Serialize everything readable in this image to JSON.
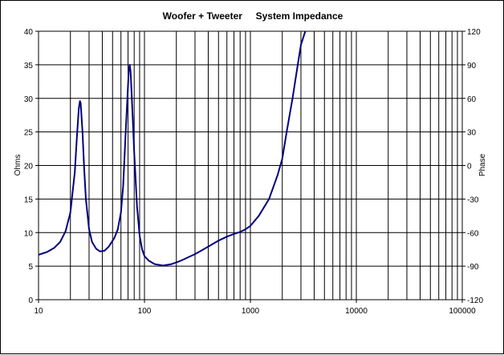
{
  "chart_data": {
    "type": "line",
    "title": "Woofer + Tweeter     System Impedance",
    "ylabel": "Ohms",
    "y2label": "Phase",
    "x_scale": "log",
    "xlim": [
      10,
      100000
    ],
    "ylim": [
      0,
      40
    ],
    "y2lim": [
      -120,
      120
    ],
    "grid": true,
    "x_tick_labels": [
      "10",
      "100",
      "1000",
      "10000",
      "100000"
    ],
    "y_tick_labels": [
      "0",
      "5",
      "10",
      "15",
      "20",
      "25",
      "30",
      "35",
      "40"
    ],
    "y2_tick_labels": [
      "-120",
      "-90",
      "-60",
      "-30",
      "0",
      "30",
      "60",
      "90",
      "120"
    ],
    "line_color": "#000080",
    "series": [
      {
        "points": [
          [
            10,
            6.7
          ],
          [
            12,
            7.1
          ],
          [
            14,
            7.7
          ],
          [
            16,
            8.6
          ],
          [
            18,
            10.2
          ],
          [
            20,
            13.0
          ],
          [
            22,
            19.0
          ],
          [
            23,
            24.0
          ],
          [
            24,
            28.5
          ],
          [
            24.6,
            29.6
          ],
          [
            25,
            29.3
          ],
          [
            26,
            25.0
          ],
          [
            27,
            19.5
          ],
          [
            28,
            15.0
          ],
          [
            30,
            10.5
          ],
          [
            32,
            8.6
          ],
          [
            35,
            7.6
          ],
          [
            38,
            7.2
          ],
          [
            42,
            7.3
          ],
          [
            46,
            7.9
          ],
          [
            52,
            9.2
          ],
          [
            56,
            10.5
          ],
          [
            60,
            13.0
          ],
          [
            63,
            17.0
          ],
          [
            66,
            24.0
          ],
          [
            69,
            30.0
          ],
          [
            71,
            34.0
          ],
          [
            72.5,
            35.0
          ],
          [
            74,
            34.0
          ],
          [
            76,
            30.0
          ],
          [
            80,
            22.0
          ],
          [
            85,
            14.0
          ],
          [
            90,
            9.5
          ],
          [
            95,
            7.5
          ],
          [
            100,
            6.5
          ],
          [
            110,
            5.8
          ],
          [
            125,
            5.3
          ],
          [
            150,
            5.1
          ],
          [
            180,
            5.3
          ],
          [
            220,
            5.8
          ],
          [
            300,
            6.8
          ],
          [
            400,
            7.9
          ],
          [
            500,
            8.8
          ],
          [
            600,
            9.4
          ],
          [
            700,
            9.8
          ],
          [
            800,
            10.1
          ],
          [
            900,
            10.5
          ],
          [
            1000,
            11.0
          ],
          [
            1200,
            12.5
          ],
          [
            1500,
            15.0
          ],
          [
            1800,
            18.5
          ],
          [
            2000,
            21.0
          ],
          [
            2200,
            25.0
          ],
          [
            2500,
            30.0
          ],
          [
            2800,
            35.0
          ],
          [
            3000,
            38.0
          ],
          [
            3300,
            40.0
          ]
        ]
      }
    ]
  }
}
